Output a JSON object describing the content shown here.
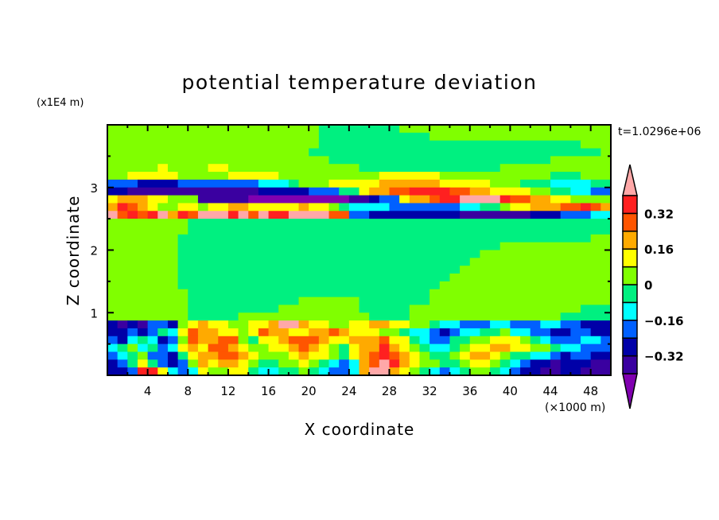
{
  "chart_data": {
    "type": "heatmap",
    "title": "potential temperature deviation",
    "xlabel": "X coordinate",
    "ylabel": "Z coordinate",
    "x_unit_label": "(×1000 m)",
    "y_unit_label": "(x1E4 m)",
    "time_label": "t=1.0296e+06",
    "xlim": [
      0,
      50
    ],
    "ylim": [
      0,
      4
    ],
    "x_ticks": [
      4,
      8,
      12,
      16,
      20,
      24,
      28,
      32,
      36,
      40,
      44,
      48
    ],
    "x_tick_labels": [
      "4",
      "8",
      "12",
      "16",
      "20",
      "24",
      "28",
      "32",
      "36",
      "40",
      "44",
      "48"
    ],
    "y_ticks": [
      1,
      2,
      3
    ],
    "y_tick_labels": [
      "1",
      "2",
      "3"
    ],
    "grid": [
      "66666666666666666666655555555666666666666666666666",
      "66666666666666666666655555555555666666666666666666",
      "66666666666666666666655555555555555555555555555666",
      "66666666666666666666555555555555555555555555555556",
      "66666666666666666666665555555555555555555555666666",
      "66666766667766666666666665555555555555566666666666",
      "66777776666677777666666666677777766666666666555666",
      "33322223333333344456667777788888877777666555444455",
      "2211111111 1111122222 3335578899 AAAA998877 7766554433",
      "7888776661 1111000000 0000112337 889AABBBBA 9988776666",
      "8A98766776 7788777778 7765444433 3333344556 7788899A98",
      "B9A9AB8A9B BBAB9BAABB BB99332222 2222211111 1122233344",
      "66666666555555555555555555555555555555555555555555",
      "66666666555555555555555555555555555555555555555555",
      "66666665555555555555555555555555555555555555555566",
      "66666665555555555555555555555555555555566666666666",
      "66666665555555555555555555555555555556666666666666",
      "66666665555555555555555555555555555566666666666666",
      "66666665555555555555555555555555555666666666666666",
      "66666665555555555555555555555555556666666666666666",
      "66666665555555555555555555555555566666666666666666",
      "66666666555555555555555555555555666666666666666666",
      "66666666555555555556666665555555666666666666666666",
      "66666666555555555666666665555566666666666666666555",
      "66666666555556666666666666555566666666666666655555",
      "2121332678 7766778BB8 7766778877 6654433344 3334433222",
      "22323547988776798877889877766544323445564433223322",
      "32454236988996577899987788897754335566777654333443",
      "4564534787 9987667789 8765788A87 6544567788 7766544333",
      "3456332578 8998766678 7765789A98 7655678876 5544323322",
      "2357532368 7887655667 6543489BA8 7665567765 4322122211",
      "223AA74347 6677544556 543348BB87 6543456654 3221122111"
    ],
    "colorbar": {
      "levels": [
        -0.4,
        -0.32,
        -0.24,
        -0.16,
        -0.08,
        0,
        0.08,
        0.16,
        0.24,
        0.32,
        0.4
      ],
      "labels": [
        {
          "value": 0.32,
          "text": "0.32"
        },
        {
          "value": 0.16,
          "text": "0.16"
        },
        {
          "value": 0,
          "text": "0"
        },
        {
          "value": -0.16,
          "text": "−0.16"
        },
        {
          "value": -0.32,
          "text": "−0.32"
        }
      ],
      "colors": [
        "#8000b0",
        "#3a00a0",
        "#0000a8",
        "#0060ff",
        "#00ffff",
        "#00f080",
        "#80ff00",
        "#ffff00",
        "#ffaa00",
        "#ff5500",
        "#ff2020",
        "#ffa8a8"
      ],
      "extend": "both"
    },
    "grid_encoding": "each char is level class index 0-9,A,B (0 = below -0.4, B = above 0.4); 50 columns x 1 km, 32 rows x 0.125 (x1E4 m), top row first"
  }
}
